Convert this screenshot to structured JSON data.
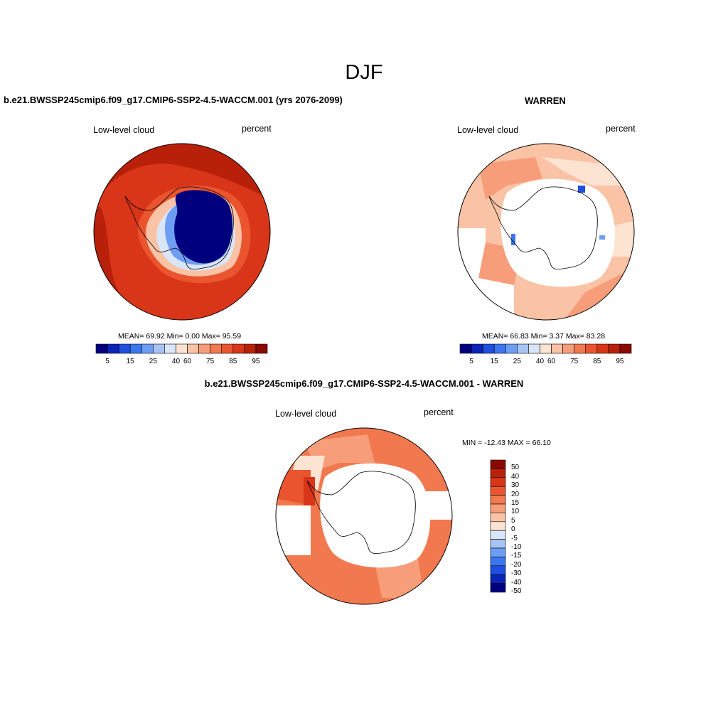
{
  "figure": {
    "title": "DJF"
  },
  "panels": {
    "model": {
      "title": "b.e21.BWSSP245cmip6.f09_g17.CMIP6-SSP2-4.5-WACCM.001 (yrs 2076-2099)",
      "variable": "Low-level cloud",
      "units": "percent",
      "stats": "MEAN=  69.92  Min=   0.00  Max=  95.59",
      "colorbar_ticks": [
        "5",
        "15",
        "25",
        "40",
        "60",
        "75",
        "85",
        "95"
      ]
    },
    "obs": {
      "title": "WARREN",
      "variable": "Low-level cloud",
      "units": "percent",
      "stats": "MEAN=  66.83  Min=   3.37  Max=  83.28",
      "colorbar_ticks": [
        "5",
        "15",
        "25",
        "40",
        "60",
        "75",
        "85",
        "95"
      ]
    },
    "diff": {
      "title": "b.e21.BWSSP245cmip6.f09_g17.CMIP6-SSP2-4.5-WACCM.001 - WARREN",
      "variable": "Low-level cloud",
      "units": "percent",
      "stats": "MIN = -12.43 MAX =  66.10",
      "colorbar_ticks": [
        "50",
        "40",
        "30",
        "20",
        "15",
        "10",
        "5",
        "0",
        "-5",
        "-10",
        "-15",
        "-20",
        "-30",
        "-40",
        "-50"
      ]
    }
  },
  "colors": {
    "abs_scale": [
      "#00007f",
      "#0a24b8",
      "#1f4fe0",
      "#3b76f0",
      "#6e9df4",
      "#a8c4f5",
      "#d9e6f7",
      "#fde3d2",
      "#fbc3a6",
      "#f79d7a",
      "#f2784f",
      "#ea5530",
      "#d93518",
      "#b8200a",
      "#8b0a00"
    ],
    "diff_scale": [
      "#8b0a00",
      "#b8200a",
      "#d93518",
      "#ea5530",
      "#f2784f",
      "#f79d7a",
      "#fbc3a6",
      "#fde3d2",
      "#d9e6f7",
      "#a8c4f5",
      "#6e9df4",
      "#3b76f0",
      "#1f4fe0",
      "#0a24b8",
      "#00007f"
    ]
  }
}
